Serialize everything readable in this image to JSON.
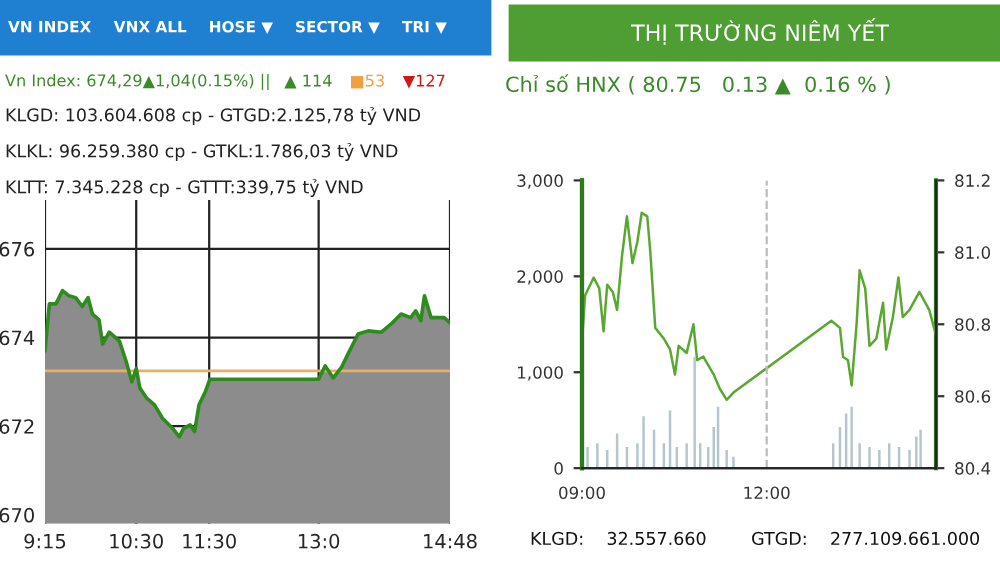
{
  "chart_data": [
    {
      "type": "area",
      "annotations": [
        "VN INDEX",
        "VNX ALL",
        "HOSE ▼",
        "SECTOR ▼",
        "TRI ▼",
        "Vn Index: 674,29▲1,04(0.15%) ||",
        "▲ 114",
        "■53",
        "▼127",
        "KLGD: 103.604.608 cp - GTGD:2.125,78 tỷ VND",
        "KLKL: 96.259.380 cp - GTKL:1.786,03 tỷ VND",
        "KLTT: 7.345.228 cp - GTTT:339,75 tỷ VND"
      ],
      "xlim": [
        9.25,
        14.8
      ],
      "xticks": [
        {
          "value": 9.25,
          "label": "9:15"
        },
        {
          "value": 10.5,
          "label": "10:30"
        },
        {
          "value": 11.5,
          "label": "11:30"
        },
        {
          "value": 13.0,
          "label": "13:0"
        },
        {
          "value": 14.8,
          "label": "14:48"
        }
      ],
      "ylim": [
        669.8,
        677.1
      ],
      "yticks": [
        670,
        672,
        674,
        676
      ],
      "grid": true,
      "ref_lines": [
        {
          "axis": "y",
          "value": 673.25,
          "label": null,
          "color": "#e8b060"
        }
      ],
      "series": [
        {
          "color": "#2e8b1e",
          "x": [
            9.25,
            9.31,
            9.4,
            9.49,
            9.58,
            9.67,
            9.76,
            9.84,
            9.9,
            9.99,
            10.04,
            10.13,
            10.27,
            10.36,
            10.44,
            10.5,
            10.55,
            10.64,
            10.75,
            10.86,
            11.0,
            11.09,
            11.15,
            11.24,
            11.3,
            11.36,
            11.45,
            11.51,
            13.0,
            13.09,
            13.2,
            13.31,
            13.4,
            13.54,
            13.68,
            13.86,
            13.99,
            14.13,
            14.26,
            14.33,
            14.4,
            14.45,
            14.54,
            14.72,
            14.8
          ],
          "values": [
            673.7,
            674.76,
            674.76,
            675.06,
            674.94,
            674.9,
            674.7,
            674.9,
            674.53,
            674.4,
            673.85,
            674.12,
            673.92,
            673.47,
            673.0,
            673.3,
            672.86,
            672.64,
            672.48,
            672.18,
            671.95,
            671.76,
            671.95,
            672.03,
            671.88,
            672.48,
            672.79,
            673.06,
            673.06,
            673.36,
            673.09,
            673.32,
            673.62,
            674.08,
            674.15,
            674.12,
            674.3,
            674.53,
            674.45,
            674.6,
            674.38,
            674.94,
            674.45,
            674.45,
            674.33
          ]
        }
      ]
    },
    {
      "type": "line",
      "title": "THỊ TRƯỜNG NIÊM YẾT",
      "subtitle": "Chỉ số HNX ( 80.75   0.13 ▲  0.16 % )",
      "annotations": [
        "KLGD:    32.557.660        GTGD:    277.109.661.000"
      ],
      "xlim": [
        9.0,
        14.75
      ],
      "xticks": [
        {
          "value": 9.0,
          "label": "09:00"
        },
        {
          "value": 12.0,
          "label": "12:00"
        }
      ],
      "ylim": [
        0,
        3000
      ],
      "yticks": [
        {
          "value": 0,
          "label": "0"
        },
        {
          "value": 1000,
          "label": "1,000"
        },
        {
          "value": 2000,
          "label": "2,000"
        },
        {
          "value": 3000,
          "label": "3,000"
        }
      ],
      "y2lim": [
        80.4,
        81.2
      ],
      "y2ticks": [
        {
          "value": 80.4,
          "label": "80.4"
        },
        {
          "value": 80.6,
          "label": "80.6"
        },
        {
          "value": 80.8,
          "label": "80.8"
        },
        {
          "value": 81.0,
          "label": "81.0"
        },
        {
          "value": 81.2,
          "label": "81.2"
        }
      ],
      "grid": "x",
      "series": [
        {
          "type": "bar",
          "color": "#b4c6cc",
          "x": [
            9.09,
            9.25,
            9.41,
            9.57,
            9.73,
            9.9,
            10.0,
            10.17,
            10.33,
            10.43,
            10.54,
            10.7,
            10.83,
            10.92,
            11.05,
            11.14,
            11.21,
            11.35,
            11.46,
            13.08,
            13.19,
            13.29,
            13.38,
            13.51,
            13.67,
            13.83,
            13.99,
            14.15,
            14.32,
            14.43,
            14.5
          ],
          "values": [
            220,
            260,
            190,
            360,
            220,
            260,
            540,
            400,
            260,
            600,
            220,
            260,
            1160,
            260,
            220,
            430,
            640,
            190,
            120,
            260,
            430,
            570,
            640,
            260,
            220,
            190,
            260,
            220,
            190,
            330,
            400
          ]
        },
        {
          "type": "line",
          "axis": "y2",
          "color": "#5aa832",
          "x": [
            9.0,
            9.05,
            9.19,
            9.28,
            9.35,
            9.41,
            9.5,
            9.57,
            9.65,
            9.73,
            9.82,
            9.9,
            9.97,
            10.06,
            10.11,
            10.19,
            10.33,
            10.43,
            10.51,
            10.57,
            10.7,
            10.81,
            10.87,
            10.97,
            11.14,
            11.24,
            11.35,
            11.46,
            13.05,
            13.19,
            13.24,
            13.32,
            13.38,
            13.46,
            13.51,
            13.6,
            13.67,
            13.78,
            13.89,
            13.94,
            14.05,
            14.14,
            14.21,
            14.32,
            14.48,
            14.64,
            14.75
          ],
          "values": [
            80.75,
            80.88,
            80.93,
            80.9,
            80.78,
            80.91,
            80.89,
            80.84,
            80.99,
            81.1,
            80.97,
            81.03,
            81.11,
            81.1,
            81.0,
            80.79,
            80.76,
            80.73,
            80.66,
            80.74,
            80.72,
            80.8,
            80.7,
            80.71,
            80.66,
            80.62,
            80.59,
            80.61,
            80.81,
            80.79,
            80.71,
            80.7,
            80.63,
            80.8,
            80.95,
            80.9,
            80.74,
            80.76,
            80.86,
            80.73,
            80.82,
            80.93,
            80.82,
            80.84,
            80.89,
            80.84,
            80.77
          ]
        }
      ]
    }
  ]
}
